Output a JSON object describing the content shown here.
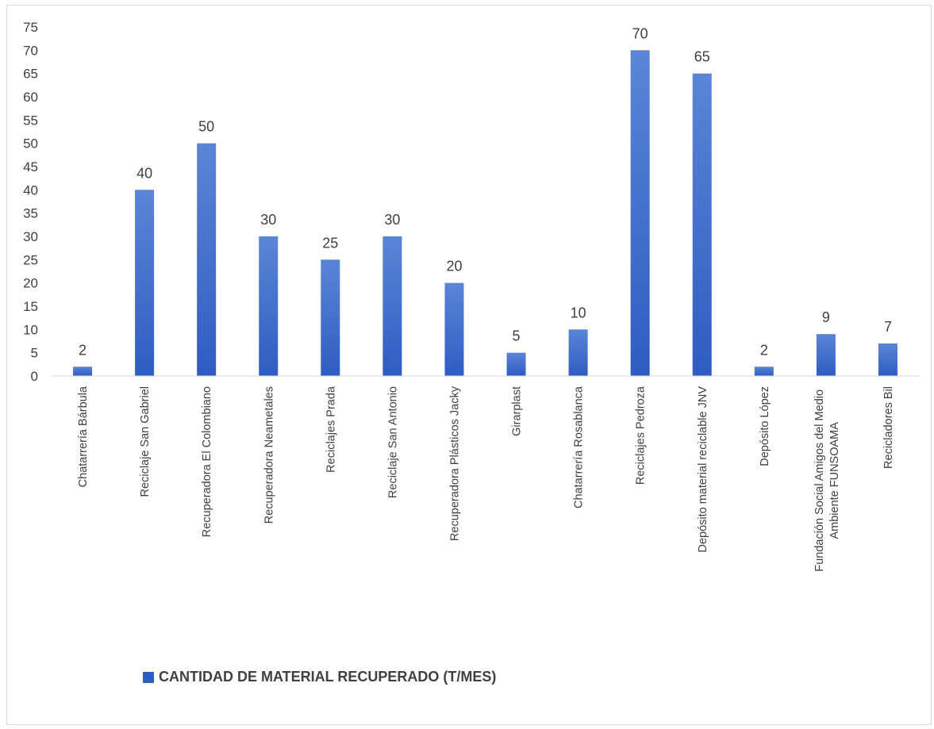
{
  "colors": {
    "bar_top": "#5b85d6",
    "bar_bottom": "#2f5cc3",
    "axis": "#d9d9d9",
    "text": "#404040"
  },
  "chart_data": {
    "type": "bar",
    "categories": [
      "Chatarrería Bárbula",
      "Reciclaje San Gabriel",
      "Recuperadora El Colombiano",
      "Recuperadora Neametales",
      "Reciclajes Prada",
      "Reciclaje San Antonio",
      "Recuperadora Plásticos Jacky",
      "Girarplast",
      "Chatarrería Rosablanca",
      "Reciclajes Pedroza",
      "Depósito material reciclable JNV",
      "Depósito López",
      "Fundación Social Amigos del Medio Ambiente FUNSOAMA",
      "Recicladores Bil"
    ],
    "series": [
      {
        "name": "CANTIDAD DE MATERIAL RECUPERADO (T/MES)",
        "values": [
          2,
          40,
          50,
          30,
          25,
          30,
          20,
          5,
          10,
          70,
          65,
          2,
          9,
          7
        ]
      }
    ],
    "ylim": [
      0,
      75
    ],
    "yticks": [
      "0",
      "5",
      "10",
      "15",
      "20",
      "25",
      "30",
      "35",
      "40",
      "45",
      "50",
      "55",
      "60",
      "65",
      "70",
      "75"
    ],
    "grid": false,
    "legend_position": "bottom-left"
  },
  "legend": {
    "label": "CANTIDAD DE MATERIAL RECUPERADO (T/MES)"
  }
}
